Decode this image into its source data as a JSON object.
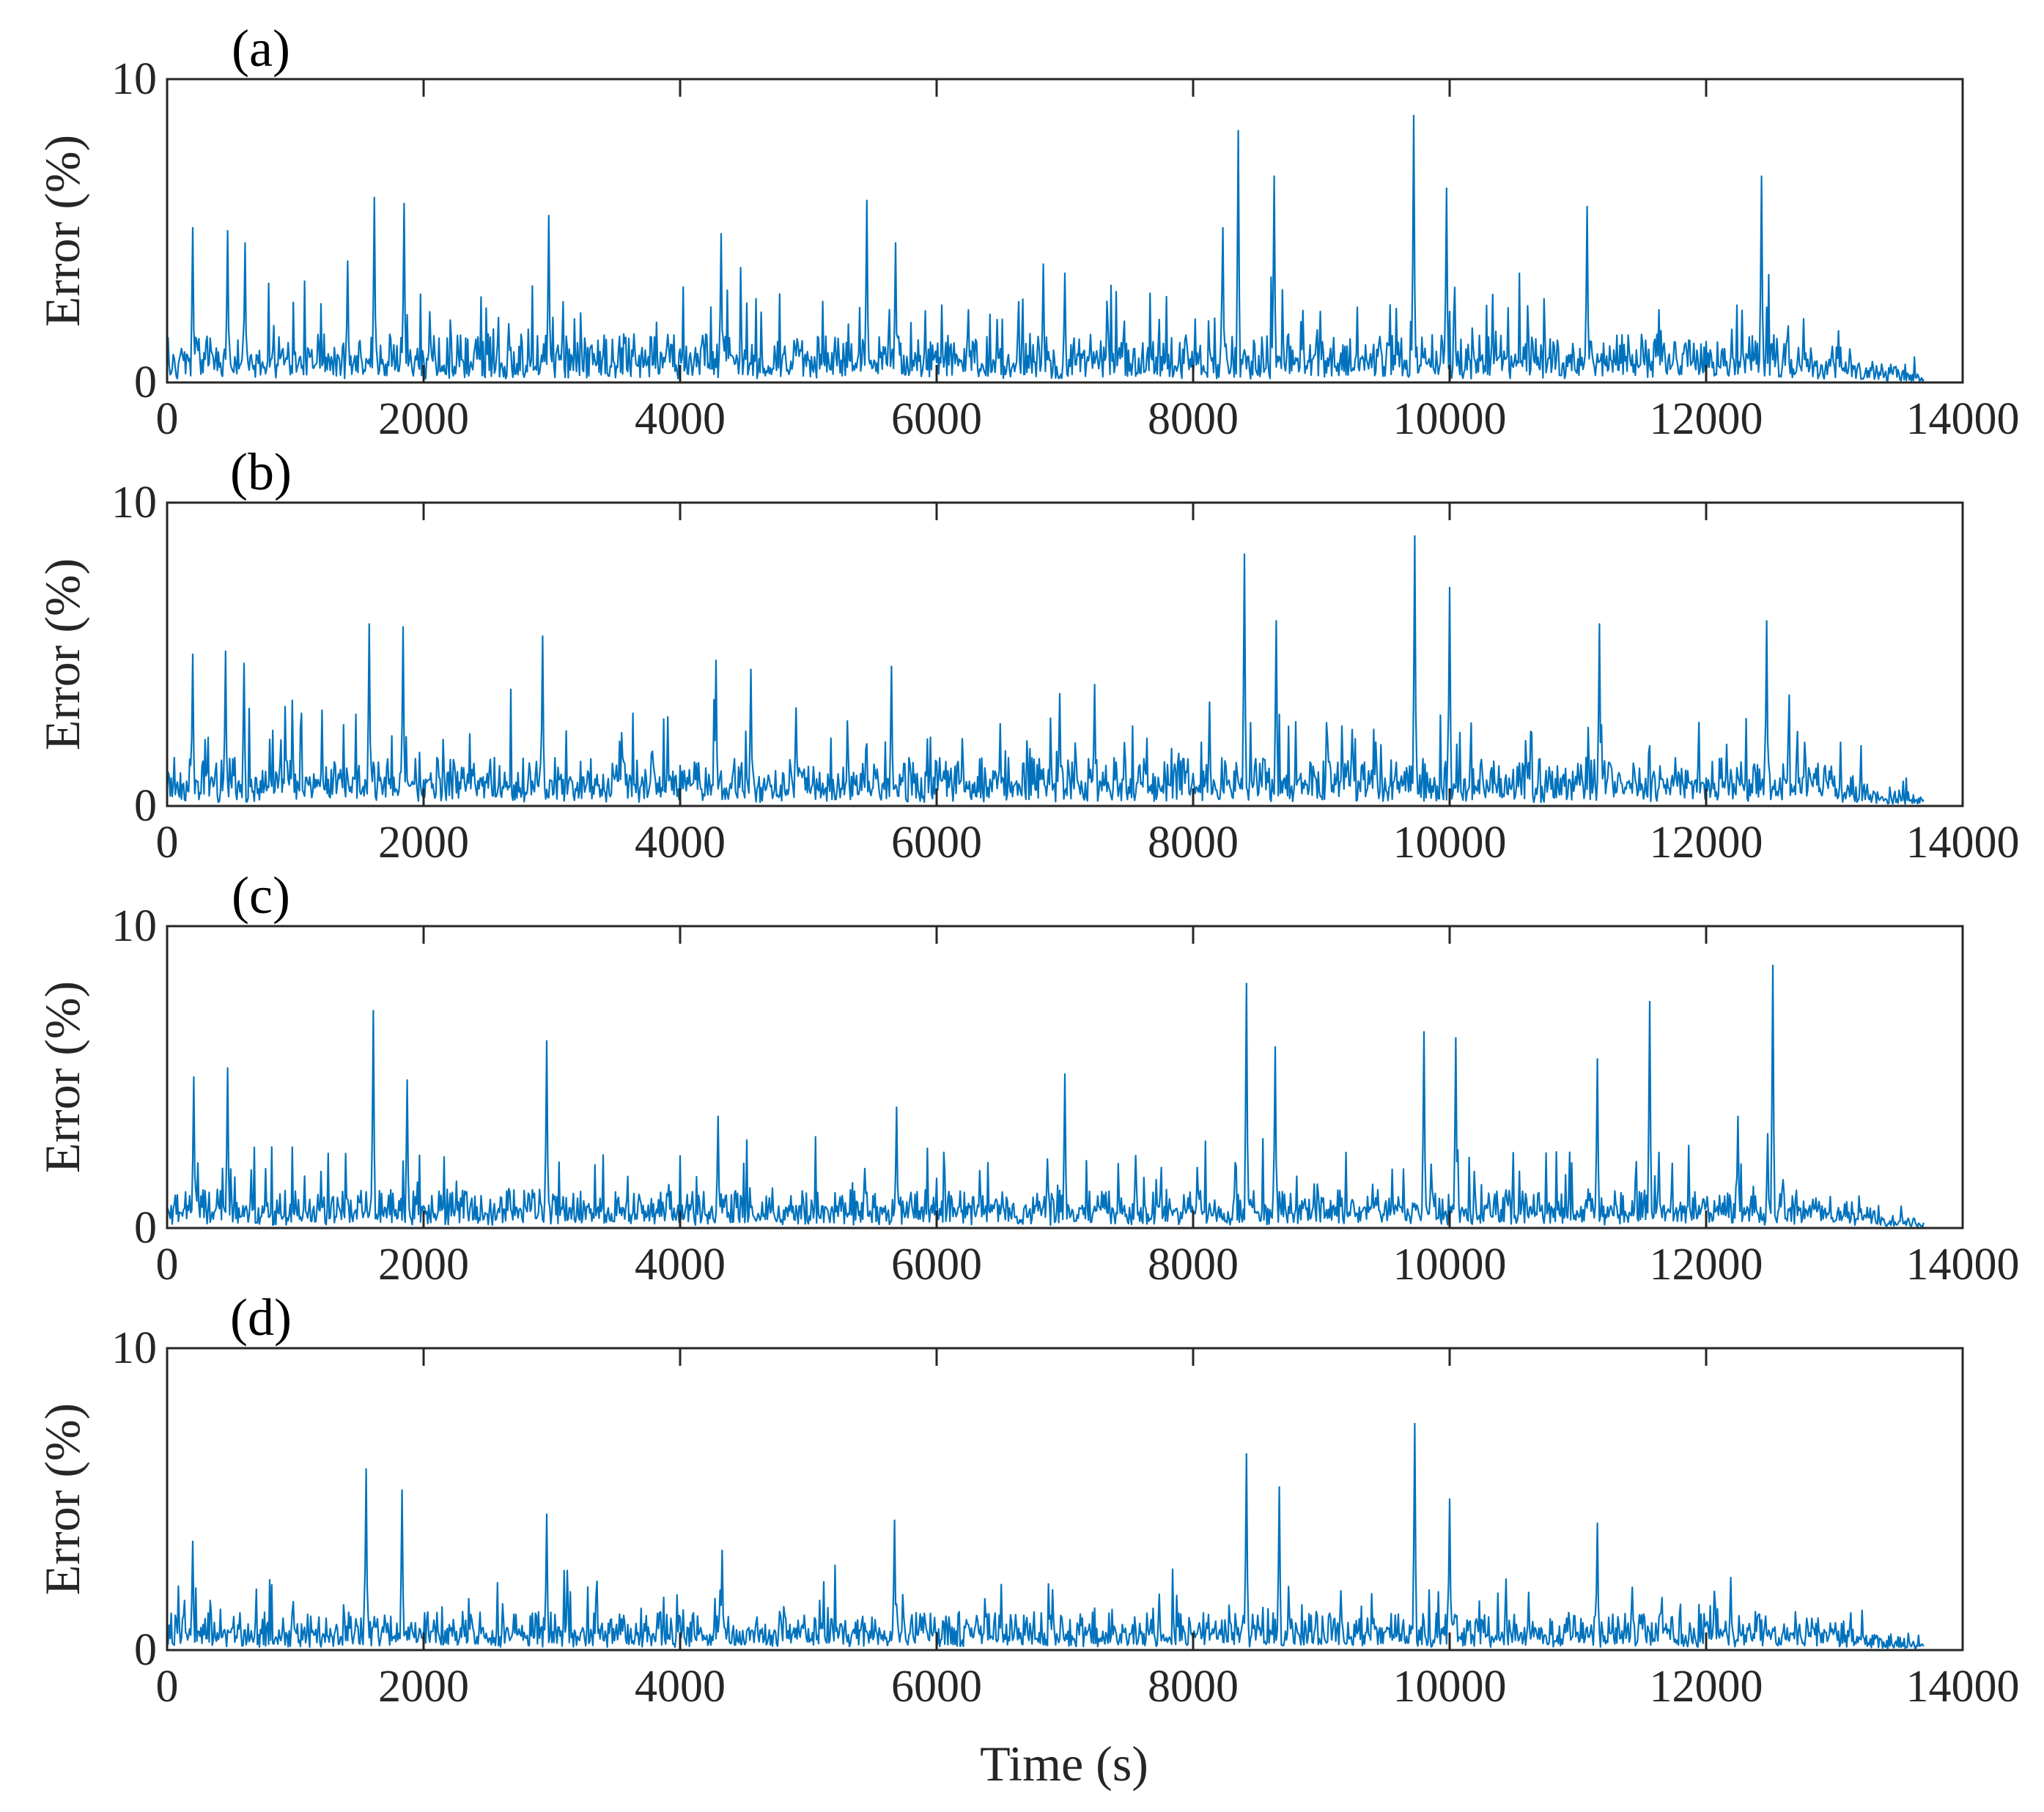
{
  "figure": {
    "xlabel": "Time (s)"
  },
  "chart_data": [
    {
      "type": "line",
      "panel_label": "(a)",
      "ylabel": "Error (%)",
      "xlim": [
        0,
        14000
      ],
      "ylim": [
        0,
        10
      ],
      "xticks": [
        "0",
        "2000",
        "4000",
        "6000",
        "8000",
        "10000",
        "12000",
        "14000"
      ],
      "yticks": [
        "0",
        "10"
      ],
      "color": "#0072BD",
      "series": [
        {
          "name": "error",
          "x_range": [
            0,
            13700
          ],
          "approx_base_level": 1.0,
          "noise_level": 1.1
        }
      ],
      "peaks": [
        {
          "x": 200,
          "y": 5.1
        },
        {
          "x": 470,
          "y": 5.0
        },
        {
          "x": 610,
          "y": 4.6
        },
        {
          "x": 1410,
          "y": 4.0
        },
        {
          "x": 1620,
          "y": 6.1
        },
        {
          "x": 1850,
          "y": 5.9
        },
        {
          "x": 2980,
          "y": 5.5
        },
        {
          "x": 4320,
          "y": 4.9
        },
        {
          "x": 5460,
          "y": 6.0
        },
        {
          "x": 5680,
          "y": 4.6
        },
        {
          "x": 6830,
          "y": 3.9
        },
        {
          "x": 7000,
          "y": 3.6
        },
        {
          "x": 8230,
          "y": 5.1
        },
        {
          "x": 8350,
          "y": 8.3
        },
        {
          "x": 8630,
          "y": 6.8
        },
        {
          "x": 9720,
          "y": 8.8
        },
        {
          "x": 9980,
          "y": 6.4
        },
        {
          "x": 11070,
          "y": 5.8
        },
        {
          "x": 12430,
          "y": 6.8
        },
        {
          "x": 12760,
          "y": 2.1
        }
      ]
    },
    {
      "type": "line",
      "panel_label": "(b)",
      "ylabel": "Error (%)",
      "xlim": [
        0,
        14000
      ],
      "ylim": [
        0,
        10
      ],
      "xticks": [
        "0",
        "2000",
        "4000",
        "6000",
        "8000",
        "10000",
        "12000",
        "14000"
      ],
      "yticks": [
        "0",
        "10"
      ],
      "color": "#0072BD",
      "series": [
        {
          "name": "error",
          "x_range": [
            0,
            13700
          ],
          "approx_base_level": 1.0,
          "noise_level": 1.1
        }
      ],
      "peaks": [
        {
          "x": 200,
          "y": 5.0
        },
        {
          "x": 460,
          "y": 5.1
        },
        {
          "x": 600,
          "y": 4.7
        },
        {
          "x": 1580,
          "y": 6.0
        },
        {
          "x": 1840,
          "y": 5.9
        },
        {
          "x": 2930,
          "y": 5.6
        },
        {
          "x": 4280,
          "y": 4.8
        },
        {
          "x": 4550,
          "y": 4.5
        },
        {
          "x": 5650,
          "y": 4.6
        },
        {
          "x": 6960,
          "y": 3.7
        },
        {
          "x": 7230,
          "y": 4.0
        },
        {
          "x": 8400,
          "y": 8.3
        },
        {
          "x": 8650,
          "y": 6.1
        },
        {
          "x": 9730,
          "y": 8.9
        },
        {
          "x": 10000,
          "y": 7.2
        },
        {
          "x": 11170,
          "y": 6.0
        },
        {
          "x": 12470,
          "y": 6.1
        },
        {
          "x": 12770,
          "y": 2.1
        }
      ]
    },
    {
      "type": "line",
      "panel_label": "(c)",
      "ylabel": "Error (%)",
      "xlim": [
        0,
        14000
      ],
      "ylim": [
        0,
        10
      ],
      "xticks": [
        "0",
        "2000",
        "4000",
        "6000",
        "8000",
        "10000",
        "12000",
        "14000"
      ],
      "yticks": [
        "0",
        "10"
      ],
      "color": "#0072BD",
      "series": [
        {
          "name": "error",
          "x_range": [
            0,
            13700
          ],
          "approx_base_level": 0.8,
          "noise_level": 0.9
        }
      ],
      "peaks": [
        {
          "x": 210,
          "y": 5.0
        },
        {
          "x": 470,
          "y": 5.3
        },
        {
          "x": 1610,
          "y": 7.2
        },
        {
          "x": 1870,
          "y": 4.9
        },
        {
          "x": 2960,
          "y": 6.2
        },
        {
          "x": 4300,
          "y": 3.7
        },
        {
          "x": 5690,
          "y": 4.0
        },
        {
          "x": 7000,
          "y": 5.1
        },
        {
          "x": 8420,
          "y": 8.1
        },
        {
          "x": 8640,
          "y": 6.0
        },
        {
          "x": 9800,
          "y": 6.5
        },
        {
          "x": 10050,
          "y": 6.3
        },
        {
          "x": 11150,
          "y": 5.6
        },
        {
          "x": 11560,
          "y": 7.5
        },
        {
          "x": 12250,
          "y": 3.7
        },
        {
          "x": 12520,
          "y": 8.7
        }
      ]
    },
    {
      "type": "line",
      "panel_label": "(d)",
      "ylabel": "Error (%)",
      "xlim": [
        0,
        14000
      ],
      "ylim": [
        0,
        10
      ],
      "xticks": [
        "0",
        "2000",
        "4000",
        "6000",
        "8000",
        "10000",
        "12000",
        "14000"
      ],
      "yticks": [
        "0",
        "10"
      ],
      "color": "#0072BD",
      "series": [
        {
          "name": "error",
          "x_range": [
            0,
            13700
          ],
          "approx_base_level": 0.8,
          "noise_level": 0.8
        }
      ],
      "peaks": [
        {
          "x": 200,
          "y": 3.6
        },
        {
          "x": 1550,
          "y": 6.0
        },
        {
          "x": 1830,
          "y": 5.3
        },
        {
          "x": 2960,
          "y": 4.5
        },
        {
          "x": 4330,
          "y": 3.3
        },
        {
          "x": 5670,
          "y": 4.3
        },
        {
          "x": 8420,
          "y": 6.5
        },
        {
          "x": 8670,
          "y": 5.4
        },
        {
          "x": 9730,
          "y": 7.5
        },
        {
          "x": 10000,
          "y": 5.0
        },
        {
          "x": 11150,
          "y": 4.2
        },
        {
          "x": 12190,
          "y": 2.4
        }
      ]
    }
  ]
}
